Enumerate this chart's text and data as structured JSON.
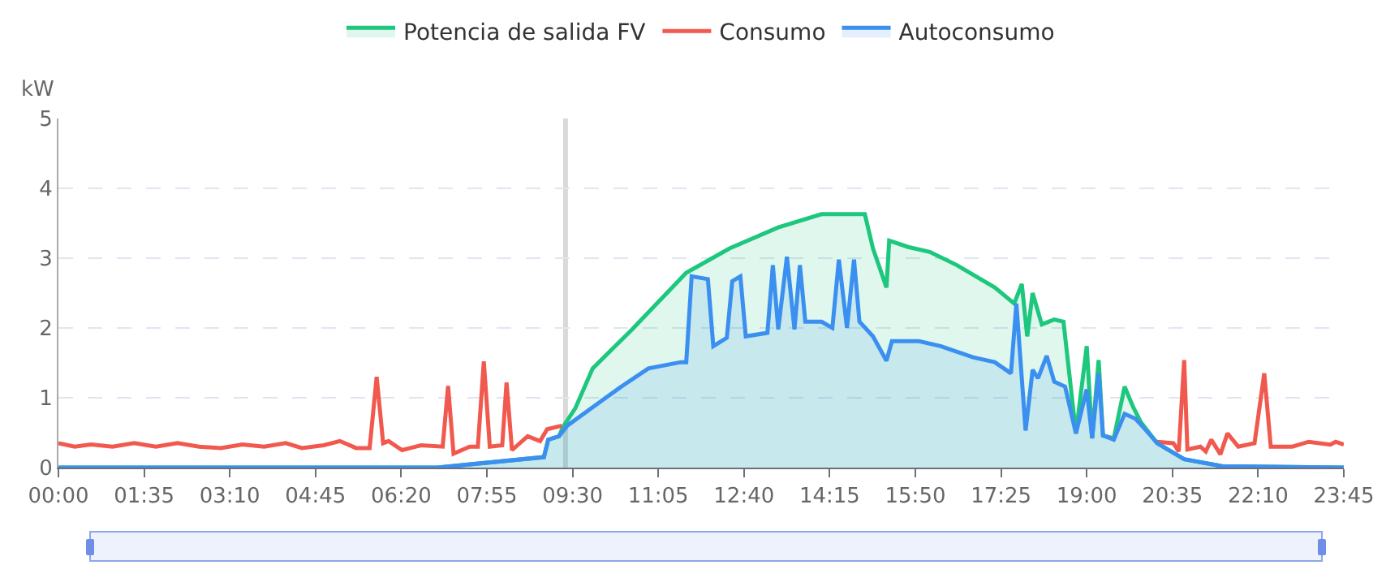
{
  "chart_data": {
    "type": "area",
    "ylabel": "kW",
    "legend": "top",
    "grid": "y",
    "marker": "none",
    "line_style": "solid",
    "xlim": [
      0,
      23.75
    ],
    "ylim": [
      0,
      5
    ],
    "yticks": [
      0,
      1,
      2,
      3,
      4,
      5
    ],
    "xticks": [
      {
        "value": 0,
        "label": "00:00"
      },
      {
        "value": 1.5833,
        "label": "01:35"
      },
      {
        "value": 3.1667,
        "label": "03:10"
      },
      {
        "value": 4.75,
        "label": "04:45"
      },
      {
        "value": 6.3333,
        "label": "06:20"
      },
      {
        "value": 7.9167,
        "label": "07:55"
      },
      {
        "value": 9.5,
        "label": "09:30"
      },
      {
        "value": 11.0833,
        "label": "11:05"
      },
      {
        "value": 12.6667,
        "label": "12:40"
      },
      {
        "value": 14.25,
        "label": "14:15"
      },
      {
        "value": 15.8333,
        "label": "15:50"
      },
      {
        "value": 17.4167,
        "label": "17:25"
      },
      {
        "value": 19,
        "label": "19:00"
      },
      {
        "value": 20.5833,
        "label": "20:35"
      },
      {
        "value": 22.1667,
        "label": "22:10"
      },
      {
        "value": 23.75,
        "label": "23:45"
      }
    ],
    "ref_lines": [
      {
        "axis": "x",
        "value": 9.37,
        "color": "#d9d9d9"
      }
    ],
    "series": [
      {
        "name": "Potencia de salida FV",
        "color": "#1dc77e",
        "x": [
          0,
          7.0,
          8.97,
          9.05,
          9.25,
          9.32,
          9.55,
          9.87,
          10.6,
          11.6,
          12.4,
          13.3,
          14.1,
          14.9,
          15.05,
          15.3,
          15.35,
          15.7,
          16.1,
          16.6,
          17.3,
          17.66,
          17.8,
          17.9,
          18.0,
          18.17,
          18.4,
          18.57,
          18.7,
          18.8,
          19.0,
          19.1,
          19.22,
          19.3,
          19.5,
          19.7,
          19.85,
          20.0,
          20.3,
          20.8,
          21.5,
          23.75
        ],
        "values": [
          0,
          0,
          0.15,
          0.4,
          0.45,
          0.58,
          0.85,
          1.42,
          1.98,
          2.79,
          3.14,
          3.44,
          3.63,
          3.63,
          3.14,
          2.58,
          3.25,
          3.16,
          3.09,
          2.9,
          2.58,
          2.35,
          2.63,
          1.88,
          2.5,
          2.05,
          2.12,
          2.09,
          1.19,
          0.49,
          1.74,
          0.42,
          1.54,
          0.46,
          0.42,
          1.16,
          0.88,
          0.65,
          0.35,
          0.12,
          0.02,
          0
        ]
      },
      {
        "name": "Consumo",
        "type": "line",
        "color": "#f1594e",
        "x": [
          0,
          0.3,
          0.6,
          1.0,
          1.4,
          1.8,
          2.2,
          2.6,
          3.0,
          3.4,
          3.8,
          4.2,
          4.5,
          4.9,
          5.2,
          5.5,
          5.75,
          5.88,
          6.0,
          6.1,
          6.35,
          6.7,
          7.1,
          7.2,
          7.3,
          7.6,
          7.75,
          7.86,
          7.97,
          8.2,
          8.28,
          8.38,
          8.67,
          8.9,
          9.03,
          9.3,
          9.31,
          20.2,
          20.3,
          20.6,
          20.7,
          20.8,
          20.86,
          21.1,
          21.2,
          21.3,
          21.47,
          21.6,
          21.8,
          22.1,
          22.28,
          22.4,
          22.8,
          23.1,
          23.5,
          23.6,
          23.75
        ],
        "values": [
          0.35,
          0.3,
          0.33,
          0.3,
          0.35,
          0.3,
          0.35,
          0.3,
          0.28,
          0.33,
          0.3,
          0.35,
          0.28,
          0.32,
          0.38,
          0.28,
          0.28,
          1.3,
          0.35,
          0.38,
          0.25,
          0.32,
          0.3,
          1.17,
          0.2,
          0.3,
          0.3,
          1.52,
          0.3,
          0.32,
          1.22,
          0.25,
          0.45,
          0.38,
          0.55,
          0.6,
          null,
          null,
          0.37,
          0.35,
          0.23,
          1.54,
          0.26,
          0.3,
          0.23,
          0.4,
          0.19,
          0.49,
          0.3,
          0.35,
          1.35,
          0.3,
          0.3,
          0.37,
          0.33,
          0.37,
          0.33
        ]
      },
      {
        "name": "Autoconsumo",
        "color": "#3b8ff0",
        "x": [
          0,
          7.0,
          8.97,
          9.05,
          9.25,
          9.4,
          9.9,
          10.4,
          10.9,
          11.5,
          11.6,
          11.7,
          12.0,
          12.1,
          12.35,
          12.45,
          12.6,
          12.7,
          13.1,
          13.2,
          13.3,
          13.46,
          13.6,
          13.7,
          13.8,
          14.1,
          14.3,
          14.42,
          14.57,
          14.7,
          14.8,
          15.05,
          15.3,
          15.4,
          15.9,
          16.3,
          16.9,
          17.3,
          17.6,
          17.7,
          17.87,
          18.0,
          18.1,
          18.26,
          18.4,
          18.6,
          18.8,
          19.0,
          19.1,
          19.22,
          19.3,
          19.5,
          19.7,
          19.9,
          20.1,
          20.3,
          20.8,
          21.5,
          23.75
        ],
        "values": [
          0,
          0,
          0.15,
          0.4,
          0.45,
          0.6,
          0.88,
          1.16,
          1.42,
          1.51,
          1.51,
          2.74,
          2.7,
          1.74,
          1.86,
          2.67,
          2.74,
          1.88,
          1.93,
          2.9,
          1.98,
          3.02,
          1.98,
          2.9,
          2.09,
          2.09,
          2.0,
          2.98,
          2.0,
          2.98,
          2.09,
          1.88,
          1.53,
          1.81,
          1.81,
          1.74,
          1.58,
          1.51,
          1.35,
          2.35,
          0.53,
          1.4,
          1.28,
          1.6,
          1.23,
          1.16,
          0.49,
          1.12,
          0.42,
          1.35,
          0.46,
          0.4,
          0.77,
          0.7,
          0.53,
          0.35,
          0.12,
          0.02,
          0
        ]
      }
    ]
  }
}
